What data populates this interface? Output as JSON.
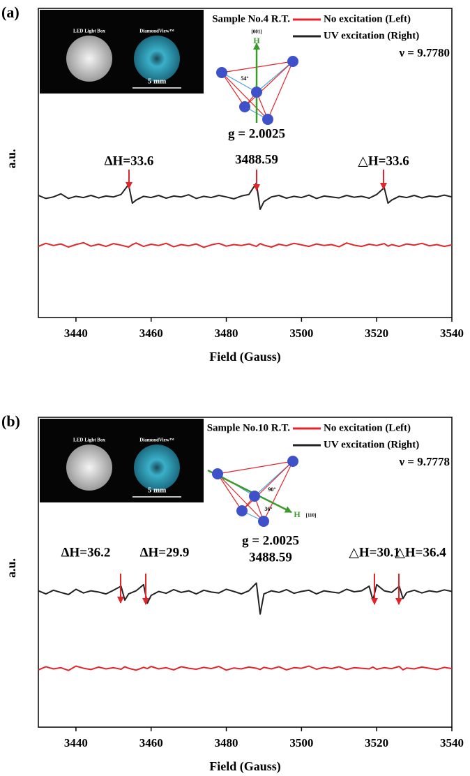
{
  "chart_data": [
    {
      "type": "line",
      "panel_label": "(a)",
      "legend_title": "Sample No.4 R.T.",
      "frequency": "ν = 9.7780",
      "xlabel": "Field (Gauss)",
      "ylabel": "a.u.",
      "xlim": [
        3430,
        3540
      ],
      "xticks": [
        3440,
        3460,
        3480,
        3500,
        3520,
        3540
      ],
      "ylim": [
        0,
        10
      ],
      "x": [
        3430,
        3432,
        3434,
        3436,
        3438,
        3440,
        3442,
        3444,
        3446,
        3448,
        3450,
        3452,
        3454,
        3455,
        3456,
        3458,
        3460,
        3462,
        3464,
        3466,
        3468,
        3470,
        3472,
        3474,
        3476,
        3478,
        3480,
        3482,
        3484,
        3486,
        3488,
        3489,
        3490,
        3492,
        3494,
        3496,
        3498,
        3500,
        3502,
        3504,
        3506,
        3508,
        3510,
        3512,
        3514,
        3516,
        3518,
        3520,
        3522,
        3523,
        3524,
        3526,
        3528,
        3530,
        3532,
        3534,
        3536,
        3538,
        3540
      ],
      "series": [
        {
          "name": "No excitation (Left)",
          "color": "#e0262b",
          "values": [
            2.3,
            2.4,
            2.33,
            2.38,
            2.28,
            2.36,
            2.42,
            2.31,
            2.37,
            2.3,
            2.39,
            2.34,
            2.28,
            2.36,
            2.41,
            2.3,
            2.37,
            2.33,
            2.4,
            2.29,
            2.36,
            2.32,
            2.38,
            2.27,
            2.35,
            2.4,
            2.31,
            2.36,
            2.33,
            2.38,
            2.3,
            2.39,
            2.34,
            2.28,
            2.37,
            2.32,
            2.4,
            2.35,
            2.3,
            2.38,
            2.33,
            2.36,
            2.29,
            2.41,
            2.34,
            2.3,
            2.37,
            2.33,
            2.39,
            2.31,
            2.36,
            2.3,
            2.38,
            2.34,
            2.4,
            2.32,
            2.36,
            2.3,
            2.35
          ]
        },
        {
          "name": "UV excitation (Right)",
          "color": "#222222",
          "values": [
            3.95,
            3.85,
            3.9,
            4.0,
            3.85,
            3.92,
            3.88,
            3.95,
            3.87,
            3.93,
            3.9,
            3.98,
            4.3,
            3.7,
            3.8,
            3.92,
            3.88,
            3.95,
            3.86,
            3.93,
            3.9,
            3.97,
            3.85,
            3.92,
            3.88,
            3.95,
            3.9,
            3.84,
            3.93,
            3.98,
            4.35,
            3.5,
            3.75,
            3.9,
            3.95,
            3.86,
            3.92,
            3.88,
            3.96,
            3.85,
            3.93,
            3.9,
            3.87,
            3.95,
            3.89,
            3.92,
            3.86,
            3.98,
            4.2,
            3.7,
            3.8,
            3.92,
            3.88,
            3.95,
            3.87,
            3.93,
            3.9,
            3.96,
            3.9
          ]
        }
      ],
      "annotations": [
        "ΔH=33.6",
        "3488.59",
        "△H=33.6"
      ],
      "g_label": "g = 2.0025",
      "inset": {
        "labels": [
          "LED Light Box",
          "DiamondView™"
        ],
        "scale": "5 mm"
      },
      "diagram_labels": [
        "[001]",
        "H",
        "54°"
      ]
    },
    {
      "type": "line",
      "panel_label": "(b)",
      "legend_title": "Sample No.10 R.T.",
      "frequency": "ν = 9.7778",
      "xlabel": "Field (Gauss)",
      "ylabel": "a.u.",
      "xlim": [
        3430,
        3540
      ],
      "xticks": [
        3440,
        3460,
        3480,
        3500,
        3520,
        3540
      ],
      "ylim": [
        0,
        10
      ],
      "x": [
        3430,
        3432,
        3434,
        3436,
        3438,
        3440,
        3442,
        3444,
        3446,
        3448,
        3450,
        3452,
        3453,
        3454,
        3456,
        3458,
        3459,
        3460,
        3462,
        3464,
        3466,
        3468,
        3470,
        3472,
        3474,
        3476,
        3478,
        3480,
        3482,
        3484,
        3486,
        3488,
        3489,
        3490,
        3492,
        3494,
        3496,
        3498,
        3500,
        3502,
        3504,
        3506,
        3508,
        3510,
        3512,
        3514,
        3516,
        3518,
        3519,
        3520,
        3522,
        3524,
        3526,
        3527,
        3528,
        3530,
        3532,
        3534,
        3536,
        3538,
        3540
      ],
      "series": [
        {
          "name": "No excitation (Left)",
          "color": "#e0262b",
          "values": [
            1.85,
            1.95,
            1.88,
            1.92,
            1.83,
            1.97,
            1.9,
            1.86,
            1.94,
            1.88,
            1.92,
            1.87,
            1.95,
            1.9,
            1.84,
            1.93,
            1.89,
            1.96,
            1.88,
            1.92,
            1.85,
            1.95,
            1.9,
            1.87,
            1.93,
            1.89,
            1.96,
            1.84,
            1.91,
            1.88,
            1.94,
            1.9,
            1.86,
            1.93,
            1.88,
            1.95,
            1.85,
            1.92,
            1.9,
            1.97,
            1.87,
            1.93,
            1.89,
            1.95,
            1.86,
            1.92,
            1.9,
            1.88,
            1.94,
            1.87,
            1.92,
            1.89,
            1.96,
            1.85,
            1.91,
            1.88,
            1.94,
            1.9,
            1.86,
            1.93,
            1.89
          ]
        },
        {
          "name": "UV excitation (Right)",
          "color": "#222222",
          "values": [
            4.4,
            4.3,
            4.42,
            4.35,
            4.28,
            4.45,
            4.33,
            4.4,
            4.36,
            4.3,
            4.42,
            4.55,
            4.1,
            4.3,
            4.4,
            4.6,
            4.0,
            4.25,
            4.38,
            4.32,
            4.44,
            4.35,
            4.4,
            4.3,
            4.42,
            4.36,
            4.33,
            4.45,
            4.38,
            4.3,
            4.4,
            4.65,
            3.65,
            4.3,
            4.4,
            4.35,
            4.44,
            4.32,
            4.38,
            4.42,
            4.3,
            4.4,
            4.36,
            4.33,
            4.45,
            4.37,
            4.4,
            4.55,
            4.1,
            4.6,
            4.4,
            4.35,
            4.55,
            4.15,
            4.35,
            4.42,
            4.33,
            4.4,
            4.36,
            4.43,
            4.38
          ]
        }
      ],
      "annotations": [
        "ΔH=36.2",
        "ΔH=29.9",
        "△H=30.1",
        "△H=36.4"
      ],
      "g_label": "g = 2.0025",
      "center_field": "3488.59",
      "inset": {
        "labels": [
          "LED Light Box",
          "DiamondView™"
        ],
        "scale": "5 mm"
      },
      "diagram_labels": [
        "H",
        "[110]",
        "90°",
        "36°"
      ]
    }
  ]
}
